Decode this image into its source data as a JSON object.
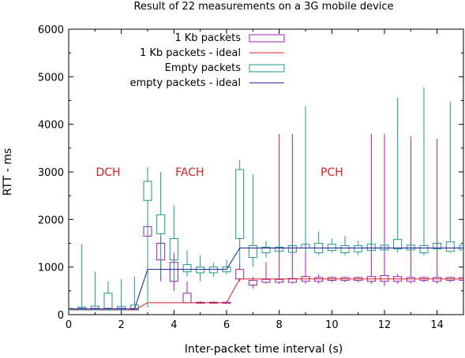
{
  "chart_data": {
    "type": "boxplot",
    "title": "Result of 22 measurements on a 3G mobile device",
    "xlabel": "Inter-packet time interval (s)",
    "ylabel": "RTT - ms",
    "xlim": [
      0,
      15
    ],
    "ylim": [
      0,
      6000
    ],
    "xticks": [
      0,
      2,
      4,
      6,
      8,
      10,
      12,
      14
    ],
    "yticks": [
      0,
      1000,
      2000,
      3000,
      4000,
      5000,
      6000
    ],
    "grid": false,
    "legend_position": "top",
    "annotations": [
      {
        "text": "DCH",
        "x": 1.5,
        "y": 3000,
        "color": "#e02020"
      },
      {
        "text": "FACH",
        "x": 4.6,
        "y": 3000,
        "color": "#e02020"
      },
      {
        "text": "PCH",
        "x": 10.0,
        "y": 3000,
        "color": "#e02020"
      }
    ],
    "series": [
      {
        "name": "1 Kb packets",
        "kind": "candlestick",
        "color": "#9b1fb0",
        "points": [
          {
            "x": 0.0,
            "min": 90,
            "q1": 100,
            "q3": 130,
            "max": 150
          },
          {
            "x": 0.5,
            "min": 90,
            "q1": 100,
            "q3": 130,
            "max": 150
          },
          {
            "x": 1.0,
            "min": 90,
            "q1": 100,
            "q3": 130,
            "max": 150
          },
          {
            "x": 1.5,
            "min": 90,
            "q1": 100,
            "q3": 130,
            "max": 150
          },
          {
            "x": 2.0,
            "min": 90,
            "q1": 100,
            "q3": 130,
            "max": 150
          },
          {
            "x": 2.5,
            "min": 90,
            "q1": 100,
            "q3": 130,
            "max": 150
          },
          {
            "x": 3.0,
            "min": 1600,
            "q1": 1650,
            "q3": 1850,
            "max": 1900
          },
          {
            "x": 3.5,
            "min": 700,
            "q1": 1150,
            "q3": 1500,
            "max": 1650
          },
          {
            "x": 4.0,
            "min": 500,
            "q1": 700,
            "q3": 1100,
            "max": 1300
          },
          {
            "x": 4.5,
            "min": 250,
            "q1": 250,
            "q3": 450,
            "max": 700
          },
          {
            "x": 5.0,
            "min": 240,
            "q1": 240,
            "q3": 260,
            "max": 280
          },
          {
            "x": 5.5,
            "min": 240,
            "q1": 240,
            "q3": 260,
            "max": 280
          },
          {
            "x": 6.0,
            "min": 240,
            "q1": 240,
            "q3": 260,
            "max": 280
          },
          {
            "x": 6.5,
            "min": 700,
            "q1": 750,
            "q3": 950,
            "max": 1050
          },
          {
            "x": 7.0,
            "min": 550,
            "q1": 620,
            "q3": 720,
            "max": 800
          },
          {
            "x": 7.5,
            "min": 650,
            "q1": 680,
            "q3": 740,
            "max": 1100
          },
          {
            "x": 8.0,
            "min": 650,
            "q1": 680,
            "q3": 740,
            "max": 3800
          },
          {
            "x": 8.5,
            "min": 650,
            "q1": 680,
            "q3": 760,
            "max": 3800
          },
          {
            "x": 9.0,
            "min": 650,
            "q1": 700,
            "q3": 800,
            "max": 3800
          },
          {
            "x": 9.5,
            "min": 650,
            "q1": 700,
            "q3": 780,
            "max": 850
          },
          {
            "x": 10.0,
            "min": 680,
            "q1": 720,
            "q3": 780,
            "max": 800
          },
          {
            "x": 10.5,
            "min": 680,
            "q1": 720,
            "q3": 780,
            "max": 800
          },
          {
            "x": 11.0,
            "min": 680,
            "q1": 720,
            "q3": 780,
            "max": 800
          },
          {
            "x": 11.5,
            "min": 650,
            "q1": 700,
            "q3": 800,
            "max": 3800
          },
          {
            "x": 12.0,
            "min": 600,
            "q1": 700,
            "q3": 820,
            "max": 3800
          },
          {
            "x": 12.5,
            "min": 650,
            "q1": 700,
            "q3": 800,
            "max": 850
          },
          {
            "x": 13.0,
            "min": 650,
            "q1": 700,
            "q3": 780,
            "max": 3750
          },
          {
            "x": 13.5,
            "min": 680,
            "q1": 720,
            "q3": 780,
            "max": 800
          },
          {
            "x": 14.0,
            "min": 650,
            "q1": 700,
            "q3": 780,
            "max": 3700
          },
          {
            "x": 14.5,
            "min": 680,
            "q1": 720,
            "q3": 780,
            "max": 800
          },
          {
            "x": 15.0,
            "min": 680,
            "q1": 720,
            "q3": 780,
            "max": 800
          }
        ]
      },
      {
        "name": "1 Kb packets - ideal",
        "kind": "line",
        "color": "#e02020",
        "x": [
          0,
          2.5,
          3.0,
          6.0,
          6.5,
          15.0
        ],
        "y": [
          100,
          100,
          250,
          250,
          750,
          750
        ]
      },
      {
        "name": "Empty packets",
        "kind": "candlestick",
        "color": "#1a9a8a",
        "points": [
          {
            "x": 0.0,
            "min": 90,
            "q1": 100,
            "q3": 130,
            "max": 150
          },
          {
            "x": 0.5,
            "min": 90,
            "q1": 100,
            "q3": 160,
            "max": 1480
          },
          {
            "x": 1.0,
            "min": 90,
            "q1": 100,
            "q3": 180,
            "max": 900
          },
          {
            "x": 1.5,
            "min": 90,
            "q1": 100,
            "q3": 450,
            "max": 700
          },
          {
            "x": 2.0,
            "min": 90,
            "q1": 100,
            "q3": 170,
            "max": 750
          },
          {
            "x": 2.5,
            "min": 90,
            "q1": 110,
            "q3": 200,
            "max": 800
          },
          {
            "x": 3.0,
            "min": 150,
            "q1": 2400,
            "q3": 2800,
            "max": 3100
          },
          {
            "x": 3.5,
            "min": 800,
            "q1": 1700,
            "q3": 2100,
            "max": 3000
          },
          {
            "x": 4.0,
            "min": 700,
            "q1": 1150,
            "q3": 1600,
            "max": 2300
          },
          {
            "x": 4.5,
            "min": 800,
            "q1": 900,
            "q3": 1050,
            "max": 1350
          },
          {
            "x": 5.0,
            "min": 700,
            "q1": 880,
            "q3": 1000,
            "max": 1250
          },
          {
            "x": 5.5,
            "min": 800,
            "q1": 880,
            "q3": 1000,
            "max": 1100
          },
          {
            "x": 6.0,
            "min": 850,
            "q1": 900,
            "q3": 1000,
            "max": 1150
          },
          {
            "x": 6.5,
            "min": 1000,
            "q1": 1600,
            "q3": 3050,
            "max": 3250
          },
          {
            "x": 7.0,
            "min": 1000,
            "q1": 1200,
            "q3": 1450,
            "max": 2950
          },
          {
            "x": 7.5,
            "min": 1200,
            "q1": 1300,
            "q3": 1420,
            "max": 1550
          },
          {
            "x": 8.0,
            "min": 1300,
            "q1": 1330,
            "q3": 1420,
            "max": 1500
          },
          {
            "x": 8.5,
            "min": 1300,
            "q1": 1310,
            "q3": 1450,
            "max": 1500
          },
          {
            "x": 9.0,
            "min": 1300,
            "q1": 1400,
            "q3": 1480,
            "max": 4380
          },
          {
            "x": 9.5,
            "min": 1250,
            "q1": 1300,
            "q3": 1500,
            "max": 1750
          },
          {
            "x": 10.0,
            "min": 1300,
            "q1": 1350,
            "q3": 1480,
            "max": 1600
          },
          {
            "x": 10.5,
            "min": 1250,
            "q1": 1300,
            "q3": 1450,
            "max": 1650
          },
          {
            "x": 11.0,
            "min": 1250,
            "q1": 1320,
            "q3": 1450,
            "max": 1550
          },
          {
            "x": 11.5,
            "min": 1300,
            "q1": 1350,
            "q3": 1480,
            "max": 1600
          },
          {
            "x": 12.0,
            "min": 1300,
            "q1": 1360,
            "q3": 1460,
            "max": 1520
          },
          {
            "x": 12.5,
            "min": 1300,
            "q1": 1380,
            "q3": 1580,
            "max": 4560
          },
          {
            "x": 13.0,
            "min": 1320,
            "q1": 1360,
            "q3": 1460,
            "max": 1500
          },
          {
            "x": 13.5,
            "min": 1250,
            "q1": 1300,
            "q3": 1450,
            "max": 4780
          },
          {
            "x": 14.0,
            "min": 1300,
            "q1": 1380,
            "q3": 1500,
            "max": 1520
          },
          {
            "x": 14.5,
            "min": 1300,
            "q1": 1330,
            "q3": 1530,
            "max": 4480
          },
          {
            "x": 15.0,
            "min": 1320,
            "q1": 1360,
            "q3": 1460,
            "max": 1500
          }
        ]
      },
      {
        "name": "empty packets - ideal",
        "kind": "line",
        "color": "#1a1a9a",
        "x": [
          0,
          2.5,
          3.0,
          6.0,
          6.5,
          15.0
        ],
        "y": [
          120,
          120,
          950,
          950,
          1400,
          1400
        ]
      }
    ]
  }
}
